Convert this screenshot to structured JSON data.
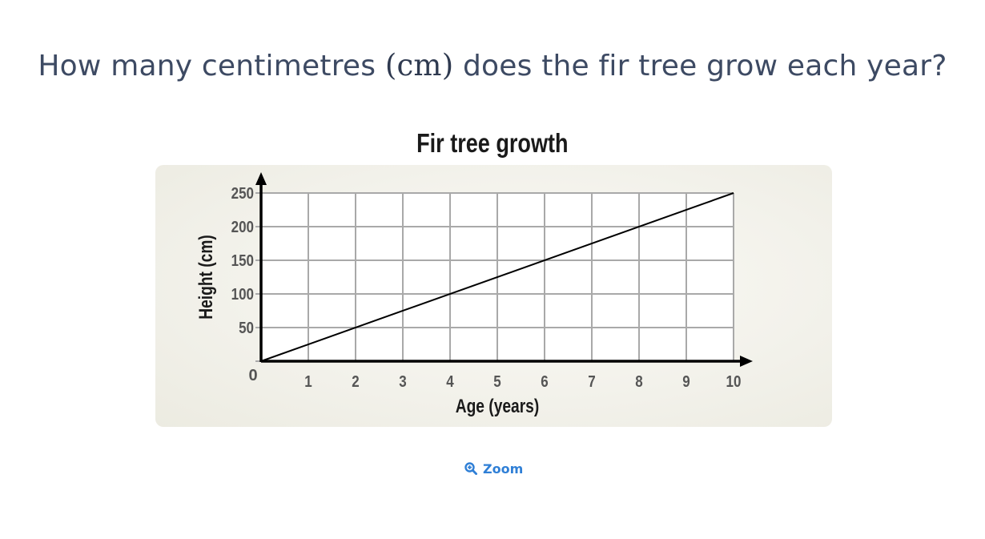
{
  "question": {
    "text_before": "How many centimetres ",
    "unit": "(cm)",
    "text_after": " does the fir tree grow each year?"
  },
  "zoom": {
    "label": "Zoom",
    "icon": "zoom-in-icon"
  },
  "colors": {
    "grid": "#a9a9a9",
    "axis": "#000000",
    "tick_label": "#555555",
    "link": "#2f7fd6"
  },
  "chart_data": {
    "type": "line",
    "title": "Fir tree growth",
    "xlabel": "Age (years)",
    "ylabel": "Height (cm)",
    "xlim": [
      0,
      10
    ],
    "ylim": [
      0,
      250
    ],
    "x_ticks": [
      1,
      2,
      3,
      4,
      5,
      6,
      7,
      8,
      9,
      10
    ],
    "y_ticks": [
      50,
      100,
      150,
      200,
      250
    ],
    "origin_label": "0",
    "grid": true,
    "series": [
      {
        "x": [
          0,
          10
        ],
        "y": [
          0,
          250
        ]
      }
    ]
  }
}
